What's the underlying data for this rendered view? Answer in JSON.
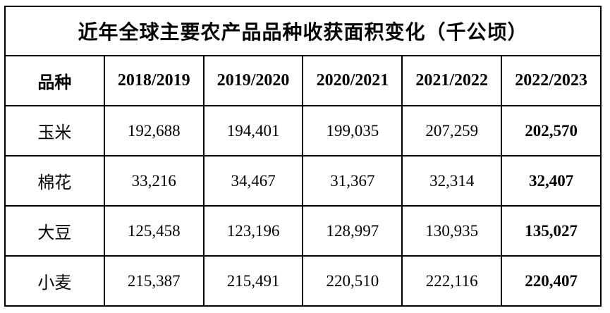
{
  "chart_data": {
    "type": "table",
    "title": "近年全球主要农产品品种收获面积变化（千公顷）",
    "columns": [
      "品种",
      "2018/2019",
      "2019/2020",
      "2020/2021",
      "2021/2022",
      "2022/2023"
    ],
    "rows": [
      [
        "玉米",
        192688,
        194401,
        199035,
        207259,
        202570
      ],
      [
        "棉花",
        33216,
        34467,
        31367,
        32314,
        32407
      ],
      [
        "大豆",
        125458,
        123196,
        128997,
        130935,
        135027
      ],
      [
        "小麦",
        215387,
        215491,
        220510,
        222116,
        220407
      ]
    ],
    "notes": "last column values rendered bold"
  },
  "table": {
    "title": "近年全球主要农产品品种收获面积变化（千公顷）",
    "columns": [
      "品种",
      "2018/2019",
      "2019/2020",
      "2020/2021",
      "2021/2022",
      "2022/2023"
    ],
    "rows": [
      {
        "label": "玉米",
        "values": [
          "192,688",
          "194,401",
          "199,035",
          "207,259",
          "202,570"
        ]
      },
      {
        "label": "棉花",
        "values": [
          "33,216",
          "34,467",
          "31,367",
          "32,314",
          "32,407"
        ]
      },
      {
        "label": "大豆",
        "values": [
          "125,458",
          "123,196",
          "128,997",
          "130,935",
          "135,027"
        ]
      },
      {
        "label": "小麦",
        "values": [
          "215,387",
          "215,491",
          "220,510",
          "222,116",
          "220,407"
        ]
      }
    ],
    "colors": {
      "banner_bg": "#ff0000",
      "banner_text": "#ffffff",
      "border": "#000000",
      "cell_bg": "#ffffff",
      "cell_text": "#000000"
    }
  }
}
